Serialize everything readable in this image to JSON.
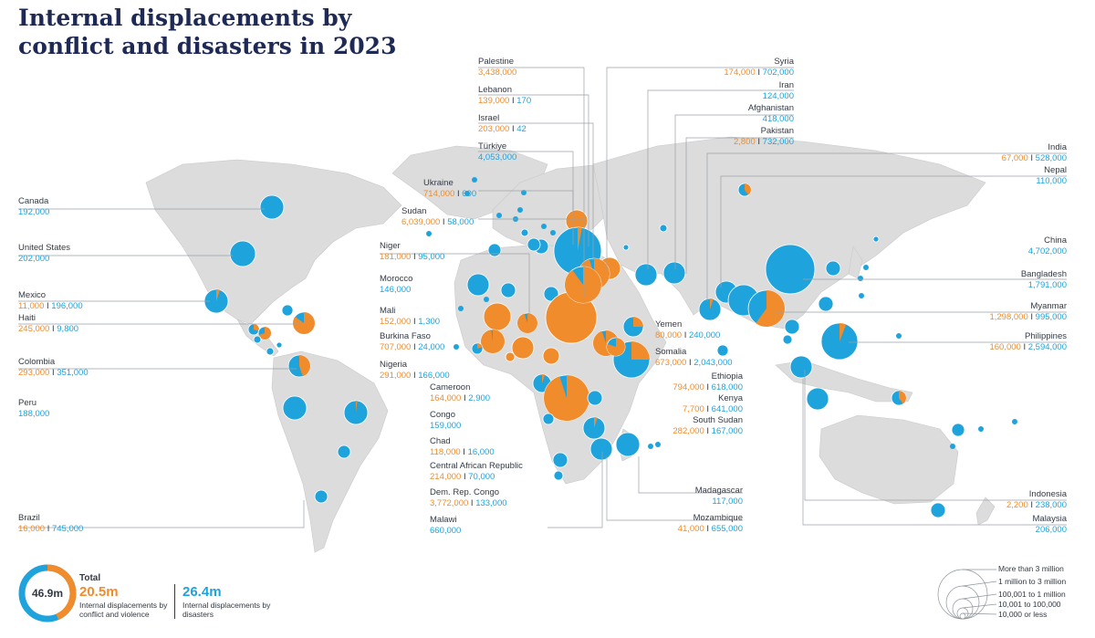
{
  "title_line1": "Internal displacements by",
  "title_line2": "conflict and disasters in 2023",
  "colors": {
    "conflict": "#f08c2c",
    "disaster": "#1fa3dc",
    "land": "#d9d9d9",
    "text": "#333a44"
  },
  "labels": [
    {
      "id": "canada",
      "name": "Canada",
      "b": "192,000"
    },
    {
      "id": "us",
      "name": "United States",
      "b": "202,000"
    },
    {
      "id": "mexico",
      "name": "Mexico",
      "o": "11,000",
      "b": "196,000"
    },
    {
      "id": "haiti",
      "name": "Haiti",
      "o": "245,000",
      "b": "9,800"
    },
    {
      "id": "colombia",
      "name": "Colombia",
      "o": "293,000",
      "b": "351,000"
    },
    {
      "id": "peru",
      "name": "Peru",
      "b": "188,000"
    },
    {
      "id": "brazil",
      "name": "Brazil",
      "o": "16,000",
      "b": "745,000"
    },
    {
      "id": "palestine",
      "name": "Palestine",
      "o": "3,438,000"
    },
    {
      "id": "lebanon",
      "name": "Lebanon",
      "o": "139,000",
      "b": "170"
    },
    {
      "id": "israel",
      "name": "Israel",
      "o": "203,000",
      "b": "42"
    },
    {
      "id": "turkiye",
      "name": "Türkiye",
      "b": "4,053,000"
    },
    {
      "id": "ukraine",
      "name": "Ukraine",
      "o": "714,000",
      "b": "600"
    },
    {
      "id": "sudan",
      "name": "Sudan",
      "o": "6,039,000",
      "b": "58,000"
    },
    {
      "id": "niger",
      "name": "Niger",
      "o": "181,000",
      "b": "95,000"
    },
    {
      "id": "morocco",
      "name": "Morocco",
      "b": "146,000"
    },
    {
      "id": "mali",
      "name": "Mali",
      "o": "152,000",
      "b": "1,300"
    },
    {
      "id": "burkina",
      "name": "Burkina Faso",
      "o": "707,000",
      "b": "24,000"
    },
    {
      "id": "nigeria",
      "name": "Nigeria",
      "o": "291,000",
      "b": "166,000"
    },
    {
      "id": "cameroon",
      "name": "Cameroon",
      "o": "164,000",
      "b": "2,900"
    },
    {
      "id": "congo",
      "name": "Congo",
      "b": "159,000"
    },
    {
      "id": "chad",
      "name": "Chad",
      "o": "118,000",
      "b": "16,000"
    },
    {
      "id": "car",
      "name": "Central African Republic",
      "o": "214,000",
      "b": "70,000"
    },
    {
      "id": "drc",
      "name": "Dem. Rep. Congo",
      "o": "3,772,000",
      "b": "133,000"
    },
    {
      "id": "malawi",
      "name": "Malawi",
      "b": "660,000"
    },
    {
      "id": "syria",
      "name": "Syria",
      "o": "174,000",
      "b": "702,000"
    },
    {
      "id": "iran",
      "name": "Iran",
      "b": "124,000"
    },
    {
      "id": "afghanistan",
      "name": "Afghanistan",
      "b": "418,000"
    },
    {
      "id": "pakistan",
      "name": "Pakistan",
      "o": "2,800",
      "b": "732,000"
    },
    {
      "id": "india",
      "name": "India",
      "o": "67,000",
      "b": "528,000"
    },
    {
      "id": "nepal",
      "name": "Nepal",
      "b": "110,000"
    },
    {
      "id": "china",
      "name": "China",
      "b": "4,702,000"
    },
    {
      "id": "bangladesh",
      "name": "Bangladesh",
      "b": "1,791,000"
    },
    {
      "id": "myanmar",
      "name": "Myanmar",
      "o": "1,298,000",
      "b": "995,000"
    },
    {
      "id": "philippines",
      "name": "Philippines",
      "o": "160,000",
      "b": "2,594,000"
    },
    {
      "id": "yemen",
      "name": "Yemen",
      "o": "80,000",
      "b": "240,000"
    },
    {
      "id": "somalia",
      "name": "Somalia",
      "o": "673,000",
      "b": "2,043,000"
    },
    {
      "id": "ethiopia",
      "name": "Ethiopia",
      "o": "794,000",
      "b": "618,000"
    },
    {
      "id": "kenya",
      "name": "Kenya",
      "o": "7,700",
      "b": "641,000"
    },
    {
      "id": "southsudan",
      "name": "South Sudan",
      "o": "282,000",
      "b": "167,000"
    },
    {
      "id": "madagascar",
      "name": "Madagascar",
      "b": "117,000"
    },
    {
      "id": "mozambique",
      "name": "Mozambique",
      "o": "41,000",
      "b": "655,000"
    },
    {
      "id": "indonesia",
      "name": "Indonesia",
      "o": "2,200",
      "b": "238,000"
    },
    {
      "id": "malaysia",
      "name": "Malaysia",
      "b": "206,000"
    }
  ],
  "totals": {
    "center": "46.9m",
    "heading": "Total",
    "conflict_value": "20.5m",
    "conflict_desc": "Internal displacements by conflict and violence",
    "disaster_value": "26.4m",
    "disaster_desc": "Internal displacements by disasters",
    "conflict_share": 0.437
  },
  "size_legend": [
    "More than 3 million",
    "1 million to 3 million",
    "100,001 to 1 million",
    "10,001 to 100,000",
    "10,000 or less"
  ]
}
